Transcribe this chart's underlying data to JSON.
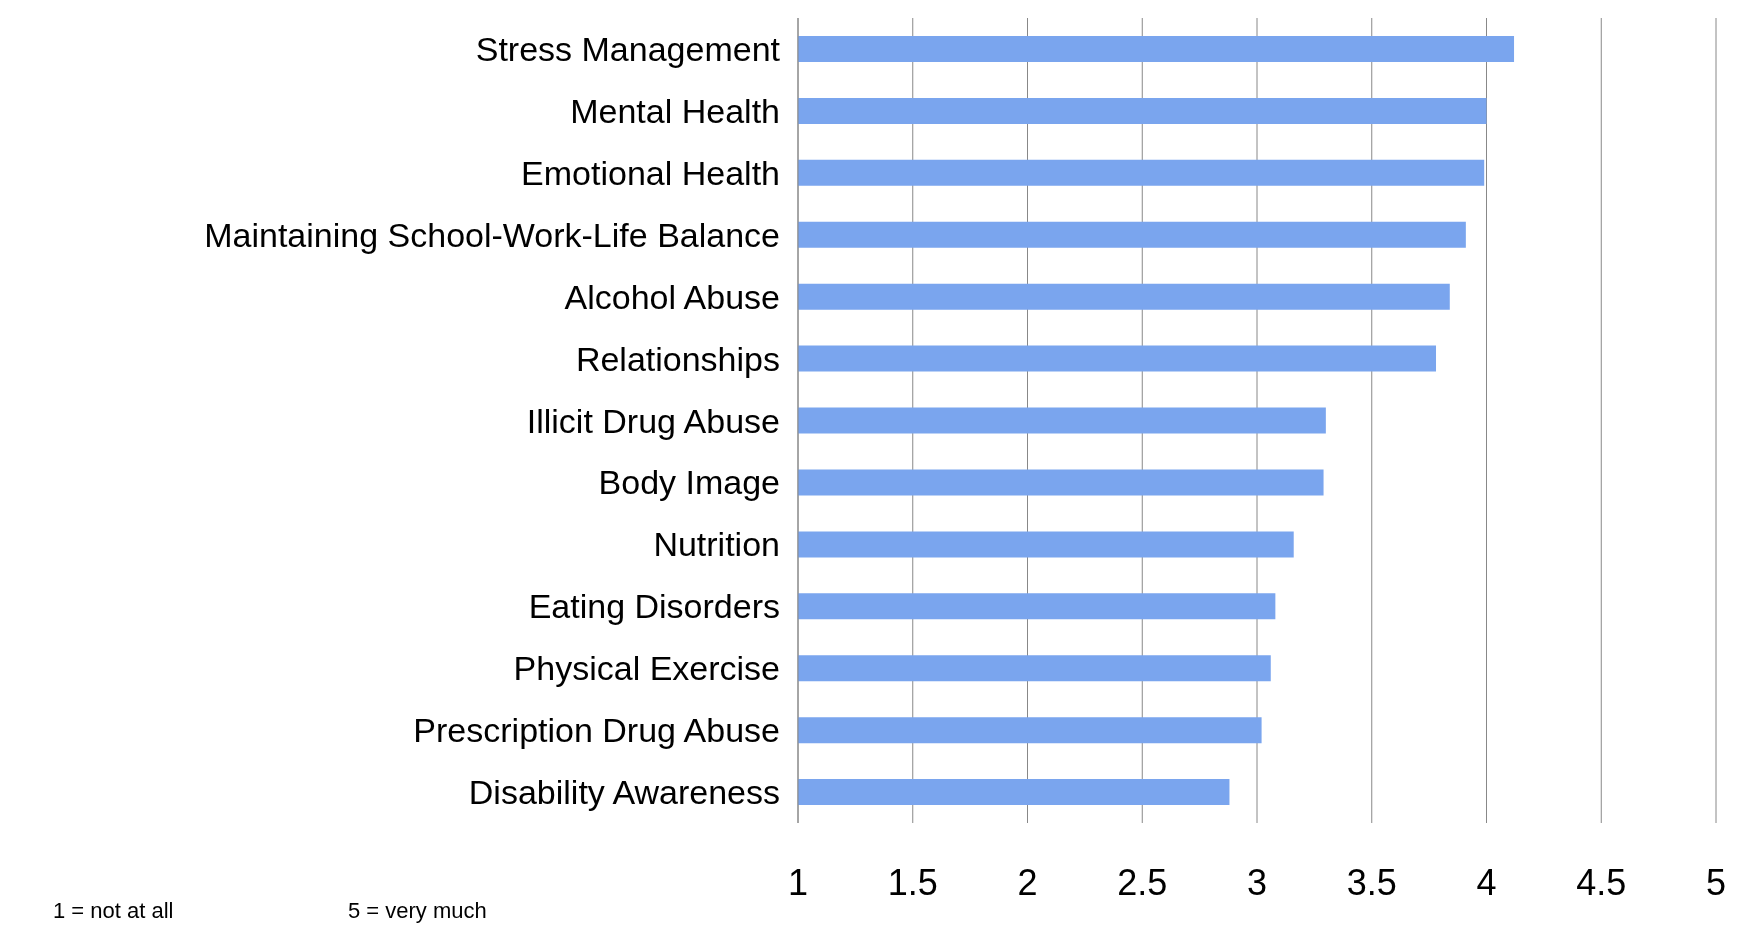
{
  "chart_data": {
    "type": "bar",
    "orientation": "horizontal",
    "categories": [
      "Stress Management",
      "Mental Health",
      "Emotional Health",
      "Maintaining School-Work-Life Balance",
      "Alcohol Abuse",
      "Relationships",
      "Illicit Drug Abuse",
      "Body Image",
      "Nutrition",
      "Eating Disorders",
      "Physical Exercise",
      "Prescription Drug Abuse",
      "Disability Awareness"
    ],
    "values": [
      4.12,
      4.0,
      3.99,
      3.91,
      3.84,
      3.78,
      3.3,
      3.29,
      3.16,
      3.08,
      3.06,
      3.02,
      2.88
    ],
    "color": "#7aa5ee",
    "xlim": [
      1,
      5
    ],
    "xticks": [
      1,
      1.5,
      2,
      2.5,
      3,
      3.5,
      4,
      4.5,
      5
    ],
    "grid": "x",
    "annotations": [
      "1 = not at all",
      "5 = very much"
    ]
  }
}
